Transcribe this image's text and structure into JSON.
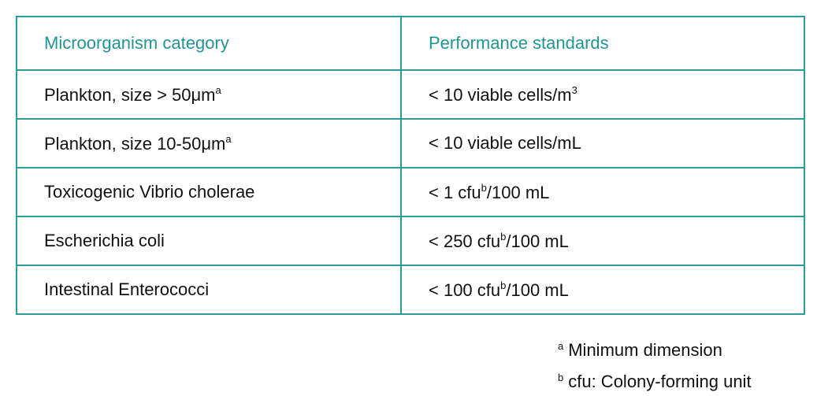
{
  "table": {
    "header": [
      "Microorganism category",
      "Performance standards"
    ],
    "rows": [
      [
        [
          {
            "text": "Plankton, size > 50μm"
          },
          {
            "sup": "a"
          }
        ],
        [
          {
            "text": "< 10 viable cells/m"
          },
          {
            "sup": "3"
          }
        ]
      ],
      [
        [
          {
            "text": "Plankton, size 10-50μm"
          },
          {
            "sup": "a"
          }
        ],
        [
          {
            "text": "< 10 viable cells/mL"
          }
        ]
      ],
      [
        [
          {
            "text": "Toxicogenic Vibrio cholerae"
          }
        ],
        [
          {
            "text": "< 1 cfu"
          },
          {
            "sup": "b"
          },
          {
            "text": "/100 mL"
          }
        ]
      ],
      [
        [
          {
            "text": "Escherichia coli"
          }
        ],
        [
          {
            "text": "< 250 cfu"
          },
          {
            "sup": "b"
          },
          {
            "text": "/100 mL"
          }
        ]
      ],
      [
        [
          {
            "text": "Intestinal Enterococci"
          }
        ],
        [
          {
            "text": "< 100 cfu"
          },
          {
            "sup": "b"
          },
          {
            "text": "/100 mL"
          }
        ]
      ]
    ]
  },
  "footnotes": [
    {
      "mark": "a",
      "text": "Minimum dimension"
    },
    {
      "mark": "b",
      "text": "cfu: Colony-forming unit"
    }
  ]
}
